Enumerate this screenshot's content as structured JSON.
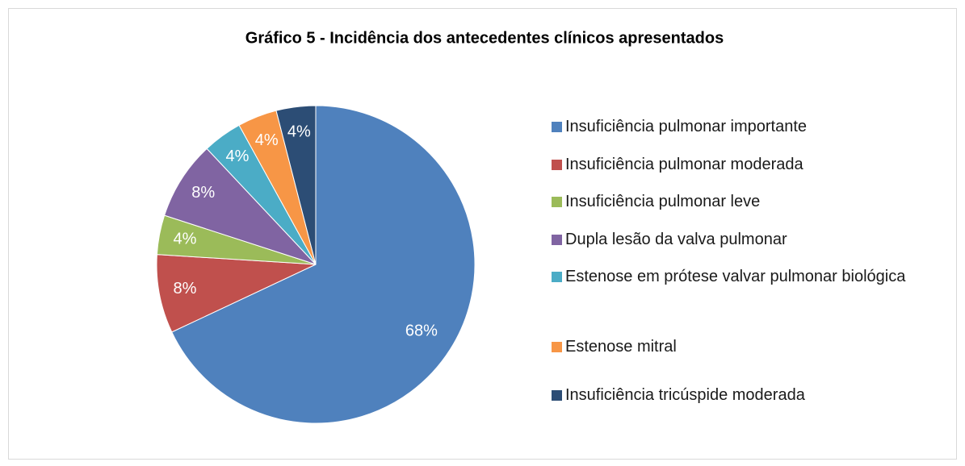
{
  "chart_data": {
    "type": "pie",
    "title": "Gráfico 5 - Incidência dos antecedentes clínicos apresentados",
    "categories": [
      "Insuficiência pulmonar importante",
      "Insuficiência pulmonar moderada",
      "Insuficiência pulmonar leve",
      "Dupla lesão da valva pulmonar",
      "Estenose em prótese valvar pulmonar biológica",
      "Estenose mitral",
      "Insuficiência tricúspide moderada"
    ],
    "values": [
      68,
      8,
      4,
      8,
      4,
      4,
      4
    ],
    "value_labels": [
      "68%",
      "8%",
      "4%",
      "8%",
      "4%",
      "4%",
      "4%"
    ],
    "colors": [
      "#4f81bd",
      "#c0504d",
      "#9bbb59",
      "#8064a2",
      "#4bacc6",
      "#f79646",
      "#2c4d75"
    ],
    "legend": "right"
  }
}
